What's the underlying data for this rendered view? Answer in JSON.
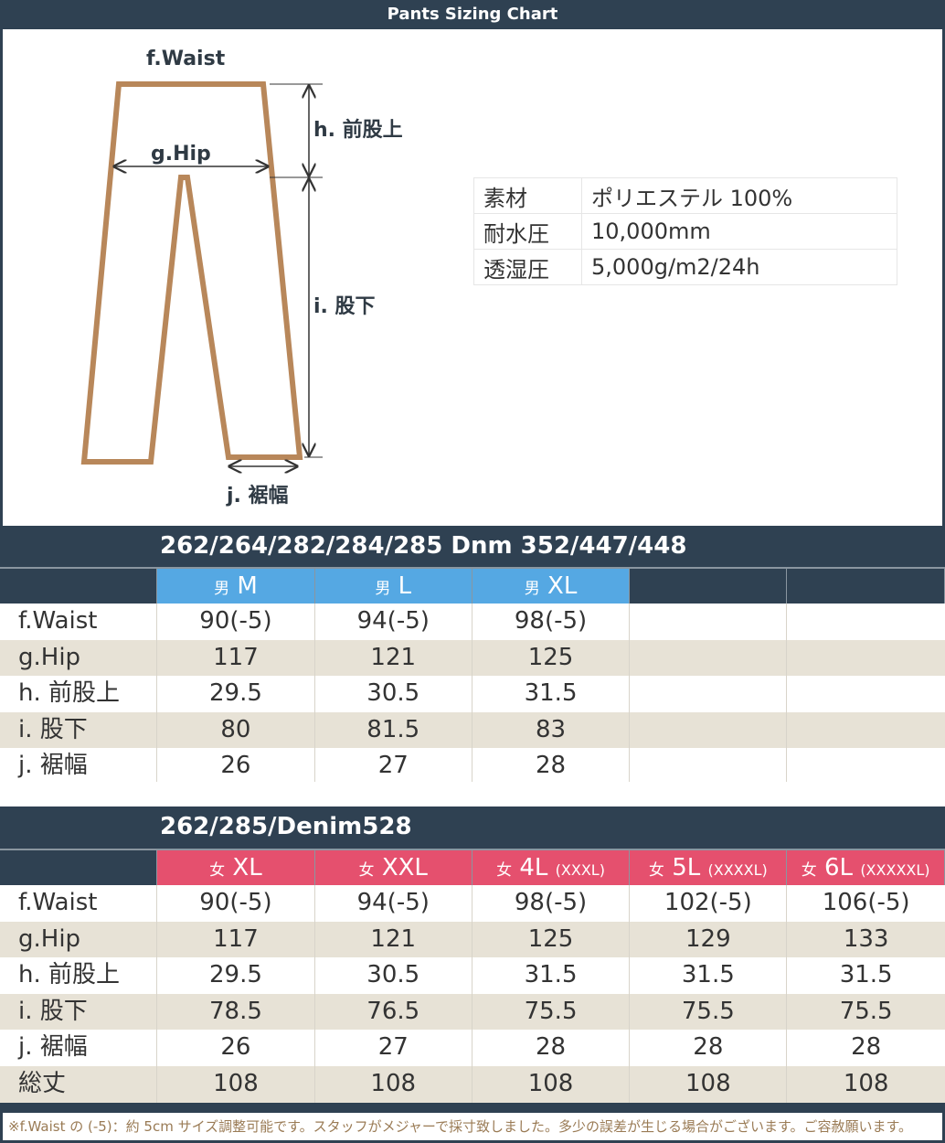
{
  "title": "Pants Sizing Chart",
  "diagram": {
    "waist": "f.Waist",
    "hip": "g.Hip",
    "rise": "h. 前股上",
    "inseam": "i. 股下",
    "hem": "j. 裾幅",
    "outline_color": "#b8875a"
  },
  "specs": [
    [
      "素材",
      "ポリエステル 100%"
    ],
    [
      "耐水圧",
      "10,000mm"
    ],
    [
      "透湿圧",
      "5,000g/m2/24h"
    ]
  ],
  "men": {
    "title": "262/264/282/284/285   Dnm 352/447/448",
    "color": "#55a8e3",
    "headers": [
      {
        "g": "男",
        "s": "M",
        "x": ""
      },
      {
        "g": "男",
        "s": "L",
        "x": ""
      },
      {
        "g": "男",
        "s": "XL",
        "x": ""
      }
    ],
    "rows": [
      [
        "f.Waist",
        "90(-5)",
        "94(-5)",
        "98(-5)"
      ],
      [
        "g.Hip",
        "117",
        "121",
        "125"
      ],
      [
        "h. 前股上",
        "29.5",
        "30.5",
        "31.5"
      ],
      [
        "i. 股下",
        "80",
        "81.5",
        "83"
      ],
      [
        "j. 裾幅",
        "26",
        "27",
        "28"
      ]
    ]
  },
  "women": {
    "title": "262/285/Denim528",
    "color": "#e5506e",
    "headers": [
      {
        "g": "女",
        "s": "XL",
        "x": ""
      },
      {
        "g": "女",
        "s": "XXL",
        "x": ""
      },
      {
        "g": "女",
        "s": "4L",
        "x": "(XXXL)"
      },
      {
        "g": "女",
        "s": "5L",
        "x": "(XXXXL)"
      },
      {
        "g": "女",
        "s": "6L",
        "x": "(XXXXXL)"
      }
    ],
    "rows": [
      [
        "f.Waist",
        "90(-5)",
        "94(-5)",
        "98(-5)",
        "102(-5)",
        "106(-5)"
      ],
      [
        "g.Hip",
        "117",
        "121",
        "125",
        "129",
        "133"
      ],
      [
        "h. 前股上",
        "29.5",
        "30.5",
        "31.5",
        "31.5",
        "31.5"
      ],
      [
        "i. 股下",
        "78.5",
        "76.5",
        "75.5",
        "75.5",
        "75.5"
      ],
      [
        "j. 裾幅",
        "26",
        "27",
        "28",
        "28",
        "28"
      ],
      [
        "総丈",
        "108",
        "108",
        "108",
        "108",
        "108"
      ]
    ]
  },
  "footer": "※f.Waist の (-5)：約 5cm サイズ調整可能です。スタッフがメジャーで採寸致しました。多少の誤差が生じる場合がございます。ご容赦願います。"
}
